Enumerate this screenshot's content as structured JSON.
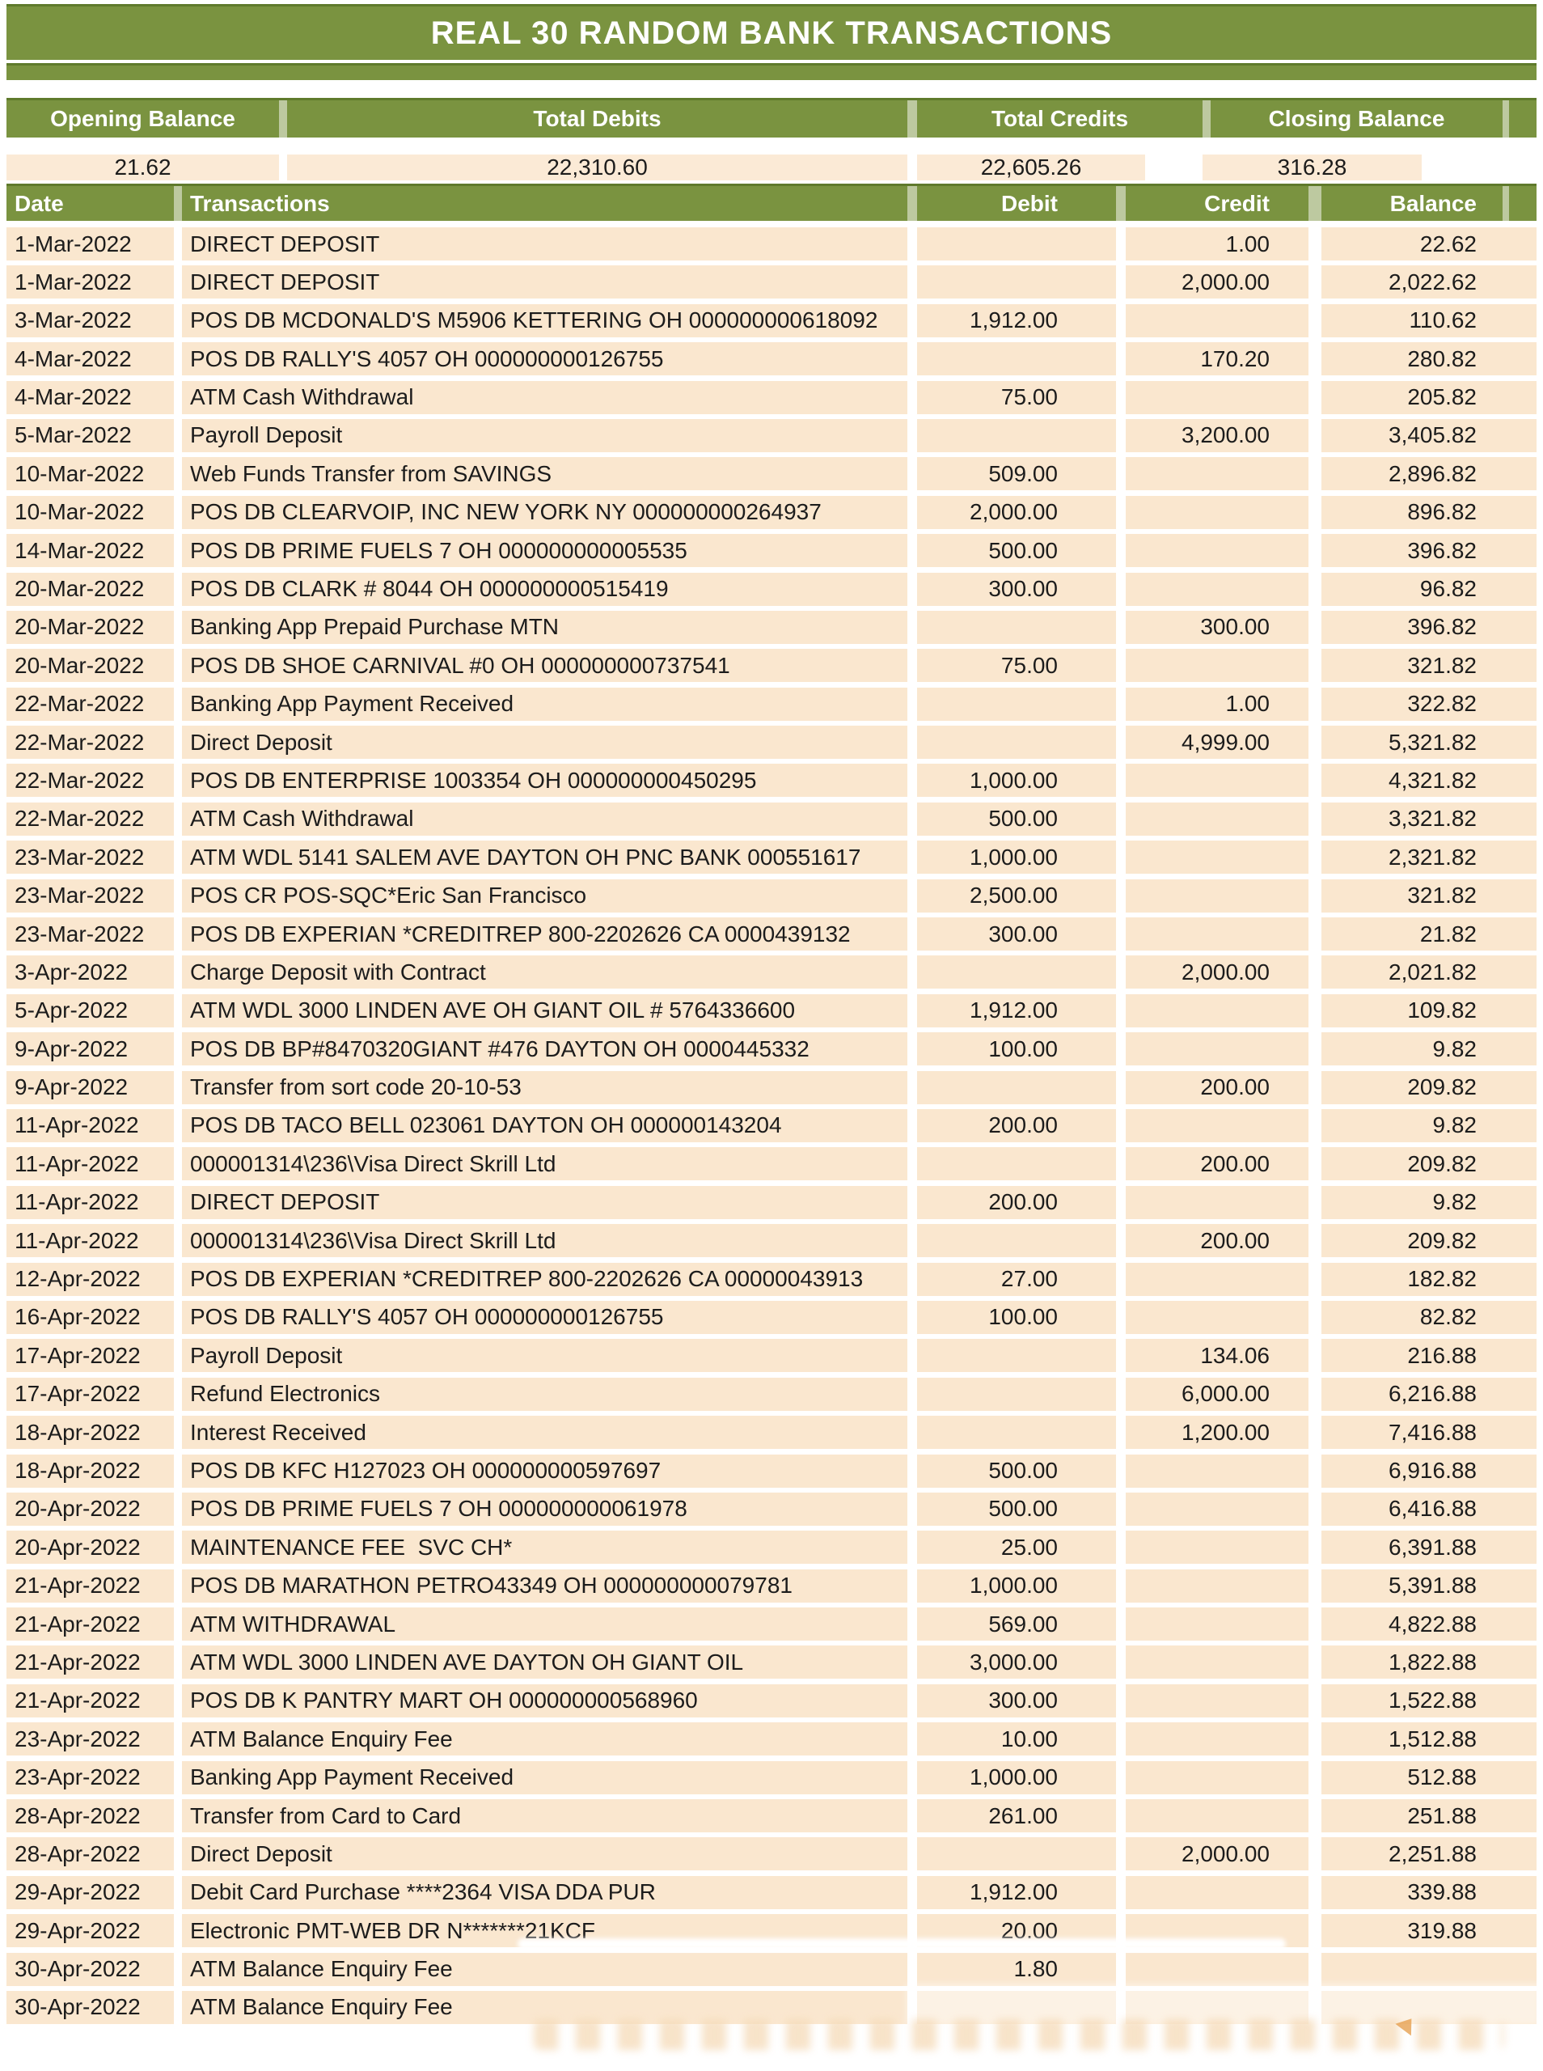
{
  "colors": {
    "header_green": "#7a9340",
    "header_green_dark": "#5f7a2c",
    "row_peach": "#fae7cf",
    "summary_value_peach": "#fbead6",
    "header_text": "#ffffff",
    "body_text": "#1c1c1c"
  },
  "title": "REAL 30 RANDOM BANK TRANSACTIONS",
  "summary": {
    "columns": [
      {
        "label": "Opening Balance",
        "value": "21.62"
      },
      {
        "label": "Total Debits",
        "value": "22,310.60"
      },
      {
        "label": "Total Credits",
        "value": "22,605.26"
      },
      {
        "label": "Closing Balance",
        "value": "316.28"
      }
    ]
  },
  "table": {
    "headers": {
      "date": "Date",
      "transactions": "Transactions",
      "debit": "Debit",
      "credit": "Credit",
      "balance": "Balance"
    },
    "rows": [
      {
        "date": "1-Mar-2022",
        "description": "DIRECT DEPOSIT",
        "debit": "",
        "credit": "1.00",
        "balance": "22.62"
      },
      {
        "date": "1-Mar-2022",
        "description": "DIRECT DEPOSIT",
        "debit": "",
        "credit": "2,000.00",
        "balance": "2,022.62"
      },
      {
        "date": "3-Mar-2022",
        "description": "POS DB MCDONALD'S M5906 KETTERING OH 000000000618092",
        "debit": "1,912.00",
        "credit": "",
        "balance": "110.62"
      },
      {
        "date": "4-Mar-2022",
        "description": "POS DB RALLY'S 4057 OH 000000000126755",
        "debit": "",
        "credit": "170.20",
        "balance": "280.82"
      },
      {
        "date": "4-Mar-2022",
        "description": "ATM Cash Withdrawal",
        "debit": "75.00",
        "credit": "",
        "balance": "205.82"
      },
      {
        "date": "5-Mar-2022",
        "description": "Payroll Deposit",
        "debit": "",
        "credit": "3,200.00",
        "balance": "3,405.82"
      },
      {
        "date": "10-Mar-2022",
        "description": "Web Funds Transfer from SAVINGS",
        "debit": "509.00",
        "credit": "",
        "balance": "2,896.82"
      },
      {
        "date": "10-Mar-2022",
        "description": "POS DB CLEARVOIP, INC NEW YORK NY 000000000264937",
        "debit": "2,000.00",
        "credit": "",
        "balance": "896.82"
      },
      {
        "date": "14-Mar-2022",
        "description": "POS DB PRIME FUELS 7 OH 000000000005535",
        "debit": "500.00",
        "credit": "",
        "balance": "396.82"
      },
      {
        "date": "20-Mar-2022",
        "description": "POS DB CLARK # 8044 OH 000000000515419",
        "debit": "300.00",
        "credit": "",
        "balance": "96.82"
      },
      {
        "date": "20-Mar-2022",
        "description": "Banking App Prepaid Purchase MTN",
        "debit": "",
        "credit": "300.00",
        "balance": "396.82"
      },
      {
        "date": "20-Mar-2022",
        "description": "POS DB SHOE CARNIVAL #0 OH 000000000737541",
        "debit": "75.00",
        "credit": "",
        "balance": "321.82"
      },
      {
        "date": "22-Mar-2022",
        "description": "Banking App Payment Received",
        "debit": "",
        "credit": "1.00",
        "balance": "322.82"
      },
      {
        "date": "22-Mar-2022",
        "description": "Direct Deposit",
        "debit": "",
        "credit": "4,999.00",
        "balance": "5,321.82"
      },
      {
        "date": "22-Mar-2022",
        "description": "POS DB ENTERPRISE 1003354 OH 000000000450295",
        "debit": "1,000.00",
        "credit": "",
        "balance": "4,321.82"
      },
      {
        "date": "22-Mar-2022",
        "description": "ATM Cash Withdrawal",
        "debit": "500.00",
        "credit": "",
        "balance": "3,321.82"
      },
      {
        "date": "23-Mar-2022",
        "description": "ATM WDL 5141 SALEM AVE DAYTON OH PNC BANK 000551617",
        "debit": "1,000.00",
        "credit": "",
        "balance": "2,321.82"
      },
      {
        "date": "23-Mar-2022",
        "description": "POS CR POS-SQC*Eric San Francisco",
        "debit": "2,500.00",
        "credit": "",
        "balance": "321.82"
      },
      {
        "date": "23-Mar-2022",
        "description": "POS DB EXPERIAN *CREDITREP 800-2202626 CA 0000439132",
        "debit": "300.00",
        "credit": "",
        "balance": "21.82"
      },
      {
        "date": "3-Apr-2022",
        "description": "Charge Deposit with Contract",
        "debit": "",
        "credit": "2,000.00",
        "balance": "2,021.82"
      },
      {
        "date": "5-Apr-2022",
        "description": "ATM WDL 3000 LINDEN AVE OH GIANT OIL # 5764336600",
        "debit": "1,912.00",
        "credit": "",
        "balance": "109.82"
      },
      {
        "date": "9-Apr-2022",
        "description": "POS DB BP#8470320GIANT #476 DAYTON OH 0000445332",
        "debit": "100.00",
        "credit": "",
        "balance": "9.82"
      },
      {
        "date": "9-Apr-2022",
        "description": "Transfer from sort code 20-10-53",
        "debit": "",
        "credit": "200.00",
        "balance": "209.82"
      },
      {
        "date": "11-Apr-2022",
        "description": "POS DB TACO BELL 023061 DAYTON OH 000000143204",
        "debit": "200.00",
        "credit": "",
        "balance": "9.82"
      },
      {
        "date": "11-Apr-2022",
        "description": "000001314\\236\\Visa Direct Skrill Ltd",
        "debit": "",
        "credit": "200.00",
        "balance": "209.82"
      },
      {
        "date": "11-Apr-2022",
        "description": "DIRECT DEPOSIT",
        "debit": "200.00",
        "credit": "",
        "balance": "9.82"
      },
      {
        "date": "11-Apr-2022",
        "description": "000001314\\236\\Visa Direct Skrill Ltd",
        "debit": "",
        "credit": "200.00",
        "balance": "209.82"
      },
      {
        "date": "12-Apr-2022",
        "description": "POS DB EXPERIAN *CREDITREP 800-2202626 CA 00000043913",
        "debit": "27.00",
        "credit": "",
        "balance": "182.82"
      },
      {
        "date": "16-Apr-2022",
        "description": "POS DB RALLY'S 4057 OH 000000000126755",
        "debit": "100.00",
        "credit": "",
        "balance": "82.82"
      },
      {
        "date": "17-Apr-2022",
        "description": "Payroll Deposit",
        "debit": "",
        "credit": "134.06",
        "balance": "216.88"
      },
      {
        "date": "17-Apr-2022",
        "description": "Refund Electronics",
        "debit": "",
        "credit": "6,000.00",
        "balance": "6,216.88"
      },
      {
        "date": "18-Apr-2022",
        "description": "Interest Received",
        "debit": "",
        "credit": "1,200.00",
        "balance": "7,416.88"
      },
      {
        "date": "18-Apr-2022",
        "description": "POS DB KFC H127023 OH 000000000597697",
        "debit": "500.00",
        "credit": "",
        "balance": "6,916.88"
      },
      {
        "date": "20-Apr-2022",
        "description": "POS DB PRIME FUELS 7 OH 000000000061978",
        "debit": "500.00",
        "credit": "",
        "balance": "6,416.88"
      },
      {
        "date": "20-Apr-2022",
        "description": "MAINTENANCE FEE  SVC CH*",
        "debit": "25.00",
        "credit": "",
        "balance": "6,391.88"
      },
      {
        "date": "21-Apr-2022",
        "description": "POS DB MARATHON PETRO43349 OH 000000000079781",
        "debit": "1,000.00",
        "credit": "",
        "balance": "5,391.88"
      },
      {
        "date": "21-Apr-2022",
        "description": "ATM WITHDRAWAL",
        "debit": "569.00",
        "credit": "",
        "balance": "4,822.88"
      },
      {
        "date": "21-Apr-2022",
        "description": "ATM WDL 3000 LINDEN AVE DAYTON OH GIANT OIL",
        "debit": "3,000.00",
        "credit": "",
        "balance": "1,822.88"
      },
      {
        "date": "21-Apr-2022",
        "description": "POS DB K PANTRY MART OH 000000000568960",
        "debit": "300.00",
        "credit": "",
        "balance": "1,522.88"
      },
      {
        "date": "23-Apr-2022",
        "description": "ATM Balance Enquiry Fee",
        "debit": "10.00",
        "credit": "",
        "balance": "1,512.88"
      },
      {
        "date": "23-Apr-2022",
        "description": "Banking App Payment Received",
        "debit": "1,000.00",
        "credit": "",
        "balance": "512.88"
      },
      {
        "date": "28-Apr-2022",
        "description": "Transfer from Card to Card",
        "debit": "261.00",
        "credit": "",
        "balance": "251.88"
      },
      {
        "date": "28-Apr-2022",
        "description": "Direct Deposit",
        "debit": "",
        "credit": "2,000.00",
        "balance": "2,251.88"
      },
      {
        "date": "29-Apr-2022",
        "description": "Debit Card Purchase ****2364 VISA DDA PUR",
        "debit": "1,912.00",
        "credit": "",
        "balance": "339.88"
      },
      {
        "date": "29-Apr-2022",
        "description": "Electronic PMT-WEB DR N*******21KCF",
        "debit": "20.00",
        "credit": "",
        "balance": "319.88"
      },
      {
        "date": "30-Apr-2022",
        "description": "ATM Balance Enquiry Fee",
        "debit": "1.80",
        "credit": "",
        "balance": ""
      },
      {
        "date": "30-Apr-2022",
        "description": "ATM Balance Enquiry Fee",
        "debit": "",
        "credit": "",
        "balance": ""
      }
    ]
  }
}
